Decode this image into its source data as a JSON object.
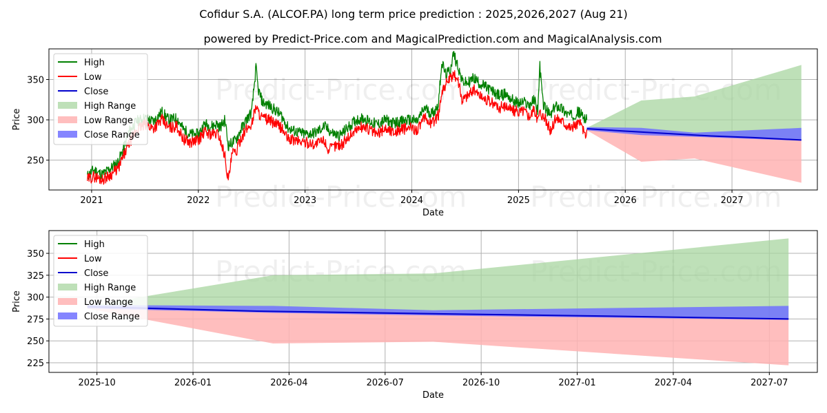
{
  "title": "Cofidur S.A. (ALCOF.PA) long term price prediction : 2025,2026,2027 (Aug 21)",
  "subtitle": "powered by Predict-Price.com and MagicalPrediction.com and MagicalAnalysis.com",
  "watermark": "Predict-Price.com",
  "colors": {
    "high": "#008000",
    "low": "#ff0000",
    "close": "#0000cd",
    "high_range": "#a8d5a0",
    "low_range": "#ffb3b3",
    "close_range": "#7070ff"
  },
  "chart_data": [
    {
      "type": "line",
      "name": "top",
      "xlabel": "Date",
      "ylabel": "Price",
      "xlim": [
        2020.6,
        2027.8
      ],
      "ylim": [
        213,
        388
      ],
      "xticks": [
        {
          "v": 2021.0,
          "label": "2021"
        },
        {
          "v": 2022.0,
          "label": "2022"
        },
        {
          "v": 2023.0,
          "label": "2023"
        },
        {
          "v": 2024.0,
          "label": "2024"
        },
        {
          "v": 2025.0,
          "label": "2025"
        },
        {
          "v": 2026.0,
          "label": "2026"
        },
        {
          "v": 2027.0,
          "label": "2027"
        }
      ],
      "yticks": [
        250,
        300,
        350
      ],
      "grid": true,
      "legend": "top-left",
      "legend_entries": [
        "High",
        "Low",
        "Close",
        "High Range",
        "Low Range",
        "Close Range"
      ],
      "high_history": [
        [
          2020.96,
          230
        ],
        [
          2021.02,
          238
        ],
        [
          2021.1,
          232
        ],
        [
          2021.18,
          240
        ],
        [
          2021.25,
          248
        ],
        [
          2021.3,
          265
        ],
        [
          2021.35,
          285
        ],
        [
          2021.42,
          298
        ],
        [
          2021.5,
          302
        ],
        [
          2021.58,
          298
        ],
        [
          2021.66,
          310
        ],
        [
          2021.72,
          300
        ],
        [
          2021.8,
          302
        ],
        [
          2021.86,
          288
        ],
        [
          2021.92,
          282
        ],
        [
          2022.0,
          282
        ],
        [
          2022.06,
          295
        ],
        [
          2022.12,
          292
        ],
        [
          2022.18,
          295
        ],
        [
          2022.2,
          290
        ],
        [
          2022.25,
          300
        ],
        [
          2022.28,
          268
        ],
        [
          2022.35,
          275
        ],
        [
          2022.4,
          288
        ],
        [
          2022.45,
          300
        ],
        [
          2022.5,
          310
        ],
        [
          2022.54,
          365
        ],
        [
          2022.56,
          338
        ],
        [
          2022.6,
          322
        ],
        [
          2022.66,
          318
        ],
        [
          2022.72,
          312
        ],
        [
          2022.78,
          305
        ],
        [
          2022.84,
          290
        ],
        [
          2022.9,
          286
        ],
        [
          2023.0,
          282
        ],
        [
          2023.1,
          284
        ],
        [
          2023.18,
          292
        ],
        [
          2023.25,
          284
        ],
        [
          2023.32,
          280
        ],
        [
          2023.4,
          290
        ],
        [
          2023.48,
          300
        ],
        [
          2023.55,
          302
        ],
        [
          2023.6,
          298
        ],
        [
          2023.68,
          294
        ],
        [
          2023.75,
          300
        ],
        [
          2023.82,
          296
        ],
        [
          2023.9,
          298
        ],
        [
          2023.98,
          300
        ],
        [
          2024.05,
          298
        ],
        [
          2024.12,
          315
        ],
        [
          2024.18,
          308
        ],
        [
          2024.22,
          312
        ],
        [
          2024.25,
          320
        ],
        [
          2024.28,
          372
        ],
        [
          2024.32,
          355
        ],
        [
          2024.36,
          362
        ],
        [
          2024.39,
          382
        ],
        [
          2024.43,
          368
        ],
        [
          2024.47,
          348
        ],
        [
          2024.52,
          345
        ],
        [
          2024.58,
          352
        ],
        [
          2024.64,
          345
        ],
        [
          2024.7,
          340
        ],
        [
          2024.76,
          335
        ],
        [
          2024.82,
          330
        ],
        [
          2024.88,
          332
        ],
        [
          2024.94,
          325
        ],
        [
          2025.0,
          320
        ],
        [
          2025.05,
          322
        ],
        [
          2025.1,
          318
        ],
        [
          2025.15,
          325
        ],
        [
          2025.18,
          312
        ],
        [
          2025.2,
          366
        ],
        [
          2025.23,
          320
        ],
        [
          2025.27,
          310
        ],
        [
          2025.3,
          305
        ],
        [
          2025.35,
          318
        ],
        [
          2025.4,
          315
        ],
        [
          2025.45,
          308
        ],
        [
          2025.5,
          305
        ],
        [
          2025.56,
          310
        ],
        [
          2025.6,
          305
        ],
        [
          2025.64,
          300
        ]
      ],
      "low_history": [
        [
          2020.96,
          226
        ],
        [
          2021.02,
          230
        ],
        [
          2021.1,
          226
        ],
        [
          2021.18,
          232
        ],
        [
          2021.25,
          240
        ],
        [
          2021.3,
          255
        ],
        [
          2021.35,
          270
        ],
        [
          2021.42,
          288
        ],
        [
          2021.5,
          294
        ],
        [
          2021.58,
          290
        ],
        [
          2021.66,
          300
        ],
        [
          2021.72,
          290
        ],
        [
          2021.8,
          292
        ],
        [
          2021.86,
          276
        ],
        [
          2021.92,
          272
        ],
        [
          2022.0,
          275
        ],
        [
          2022.06,
          285
        ],
        [
          2022.12,
          282
        ],
        [
          2022.18,
          283
        ],
        [
          2022.2,
          278
        ],
        [
          2022.25,
          255
        ],
        [
          2022.28,
          224
        ],
        [
          2022.32,
          260
        ],
        [
          2022.35,
          258
        ],
        [
          2022.4,
          278
        ],
        [
          2022.45,
          288
        ],
        [
          2022.5,
          295
        ],
        [
          2022.54,
          318
        ],
        [
          2022.56,
          310
        ],
        [
          2022.6,
          302
        ],
        [
          2022.66,
          300
        ],
        [
          2022.72,
          295
        ],
        [
          2022.78,
          290
        ],
        [
          2022.84,
          276
        ],
        [
          2022.9,
          275
        ],
        [
          2023.0,
          272
        ],
        [
          2023.1,
          270
        ],
        [
          2023.18,
          275
        ],
        [
          2023.22,
          262
        ],
        [
          2023.28,
          268
        ],
        [
          2023.35,
          270
        ],
        [
          2023.4,
          278
        ],
        [
          2023.48,
          288
        ],
        [
          2023.55,
          292
        ],
        [
          2023.6,
          288
        ],
        [
          2023.68,
          282
        ],
        [
          2023.75,
          290
        ],
        [
          2023.82,
          285
        ],
        [
          2023.9,
          288
        ],
        [
          2023.98,
          290
        ],
        [
          2024.05,
          288
        ],
        [
          2024.12,
          302
        ],
        [
          2024.18,
          296
        ],
        [
          2024.22,
          300
        ],
        [
          2024.25,
          306
        ],
        [
          2024.28,
          335
        ],
        [
          2024.32,
          345
        ],
        [
          2024.36,
          350
        ],
        [
          2024.39,
          355
        ],
        [
          2024.43,
          352
        ],
        [
          2024.47,
          325
        ],
        [
          2024.52,
          330
        ],
        [
          2024.58,
          338
        ],
        [
          2024.64,
          330
        ],
        [
          2024.7,
          325
        ],
        [
          2024.76,
          320
        ],
        [
          2024.82,
          315
        ],
        [
          2024.88,
          318
        ],
        [
          2024.94,
          312
        ],
        [
          2025.0,
          310
        ],
        [
          2025.05,
          312
        ],
        [
          2025.1,
          305
        ],
        [
          2025.15,
          312
        ],
        [
          2025.18,
          300
        ],
        [
          2025.2,
          310
        ],
        [
          2025.23,
          305
        ],
        [
          2025.27,
          296
        ],
        [
          2025.3,
          285
        ],
        [
          2025.35,
          302
        ],
        [
          2025.4,
          300
        ],
        [
          2025.45,
          294
        ],
        [
          2025.5,
          290
        ],
        [
          2025.56,
          296
        ],
        [
          2025.6,
          292
        ],
        [
          2025.62,
          278
        ],
        [
          2025.64,
          288
        ]
      ],
      "close_forecast": [
        [
          2025.64,
          289
        ],
        [
          2026.0,
          286
        ],
        [
          2026.4,
          283
        ],
        [
          2026.8,
          280
        ],
        [
          2027.2,
          278
        ],
        [
          2027.65,
          275
        ]
      ],
      "high_range": [
        [
          2025.64,
          290
        ],
        [
          2026.15,
          324
        ],
        [
          2026.65,
          329
        ],
        [
          2027.65,
          368
        ]
      ],
      "low_range": [
        [
          2025.64,
          287
        ],
        [
          2026.15,
          248
        ],
        [
          2026.65,
          252
        ],
        [
          2027.65,
          222
        ]
      ],
      "close_range_upper": [
        [
          2025.64,
          291
        ],
        [
          2026.15,
          290
        ],
        [
          2026.65,
          284
        ],
        [
          2027.65,
          290
        ]
      ],
      "close_range_lower": [
        [
          2025.64,
          287
        ],
        [
          2026.15,
          281
        ],
        [
          2026.65,
          279
        ],
        [
          2027.65,
          274
        ]
      ]
    },
    {
      "type": "area",
      "name": "bottom",
      "xlabel": "Date",
      "ylabel": "Price",
      "xlim": [
        0,
        24
      ],
      "ylim": [
        214,
        376
      ],
      "xticks": [
        {
          "v": 1.5,
          "label": "2025-10"
        },
        {
          "v": 4.5,
          "label": "2026-01"
        },
        {
          "v": 7.5,
          "label": "2026-04"
        },
        {
          "v": 10.5,
          "label": "2026-07"
        },
        {
          "v": 13.5,
          "label": "2026-10"
        },
        {
          "v": 16.5,
          "label": "2027-01"
        },
        {
          "v": 19.5,
          "label": "2027-04"
        },
        {
          "v": 22.5,
          "label": "2027-07"
        }
      ],
      "yticks": [
        225,
        250,
        275,
        300,
        325,
        350
      ],
      "grid": true,
      "legend": "top-left",
      "legend_entries": [
        "High",
        "Low",
        "Close",
        "High Range",
        "Low Range",
        "Close Range"
      ],
      "close_forecast": [
        [
          1.2,
          289
        ],
        [
          6.5,
          284
        ],
        [
          12,
          281
        ],
        [
          18,
          278
        ],
        [
          23.1,
          275
        ]
      ],
      "high_range": [
        [
          1.2,
          290
        ],
        [
          7.0,
          325
        ],
        [
          12.0,
          327
        ],
        [
          23.1,
          367
        ]
      ],
      "low_range": [
        [
          1.2,
          287
        ],
        [
          7.0,
          247
        ],
        [
          12.0,
          249
        ],
        [
          23.1,
          222
        ]
      ],
      "close_range_upper": [
        [
          1.2,
          291
        ],
        [
          7.0,
          290
        ],
        [
          12.0,
          285
        ],
        [
          23.1,
          290
        ]
      ],
      "close_range_lower": [
        [
          1.2,
          287
        ],
        [
          7.0,
          282
        ],
        [
          12.0,
          279
        ],
        [
          23.1,
          274
        ]
      ]
    }
  ]
}
